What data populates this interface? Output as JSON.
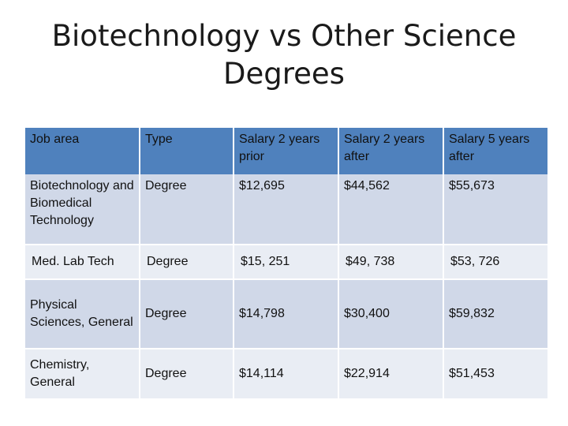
{
  "title": {
    "line1": "Biotechnology vs Other Science",
    "line2": "Degrees"
  },
  "table": {
    "headers": [
      "Job area",
      "Type",
      "Salary 2 years prior",
      "Salary 2 years after",
      "Salary 5 years after"
    ],
    "rows": [
      [
        "Biotechnology and Biomedical Technology",
        "Degree",
        "$12,695",
        "$44,562",
        "$55,673"
      ],
      [
        "Med. Lab Tech",
        "Degree",
        "$15, 251",
        "$49, 738",
        "$53, 726"
      ],
      [
        "Physical Sciences, General",
        "Degree",
        "$14,798",
        "$30,400",
        "$59,832"
      ],
      [
        "Chemistry, General",
        "Degree",
        "$14,114",
        "$22,914",
        "$51,453"
      ]
    ]
  },
  "colors": {
    "header_bg": "#4f81bd",
    "row_dark": "#d0d8e8",
    "row_light": "#e9edf4"
  }
}
